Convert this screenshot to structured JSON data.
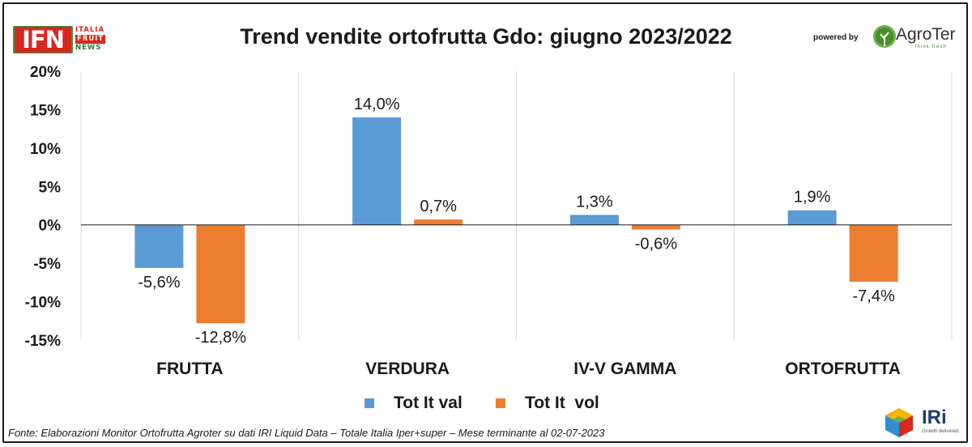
{
  "header": {
    "title": "Trend vendite ortofrutta Gdo: giugno 2023/2022",
    "logo_left": {
      "letters": "IFN",
      "line1": "ITALIA",
      "line2": "FRUIT",
      "line3": "NEWS"
    },
    "powered_by": "powered by",
    "logo_right": {
      "name": "AgroTer",
      "tagline": "think fresh"
    }
  },
  "chart_data": {
    "type": "bar",
    "title": "Trend vendite ortofrutta Gdo: giugno 2023/2022",
    "categories": [
      "FRUTTA",
      "VERDURA",
      "IV-V GAMMA",
      "ORTOFRUTTA"
    ],
    "series": [
      {
        "name": "Tot It val",
        "values": [
          -5.6,
          14.0,
          1.3,
          1.9
        ],
        "labels": [
          "-5,6%",
          "14,0%",
          "1,3%",
          "1,9%"
        ],
        "color": "#5b9bd5"
      },
      {
        "name": "Tot It  vol",
        "values": [
          -12.8,
          0.7,
          -0.6,
          -7.4
        ],
        "labels": [
          "-12,8%",
          "0,7%",
          "-0,6%",
          "-7,4%"
        ],
        "color": "#ed7d31"
      }
    ],
    "yticks": [
      20,
      15,
      10,
      5,
      0,
      -5,
      -10,
      -15
    ],
    "ytick_labels": [
      "20%",
      "15%",
      "10%",
      "5%",
      "0%",
      "-5%",
      "-10%",
      "-15%"
    ],
    "ylim": [
      -15,
      20
    ],
    "xlabel": "",
    "ylabel": "",
    "grid": "vertical separators",
    "legend_position": "bottom"
  },
  "footnote": "Fonte: Elaborazioni Monitor Ortofrutta Agroter su dati IRI Liquid Data – Totale Italia Iper+super – Mese terminante al 02-07-2023",
  "logo_bottom": {
    "name": "IRi",
    "tagline": "Growth delivered."
  }
}
